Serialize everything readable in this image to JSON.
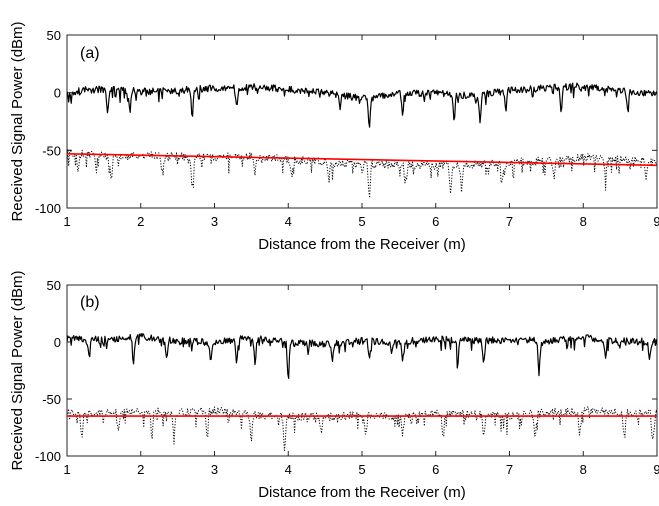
{
  "chart_data": [
    {
      "type": "line",
      "panel_label": "(a)",
      "xlabel": "Distance from the Receiver (m)",
      "ylabel": "Received Signal Power (dBm)",
      "xlim": [
        1,
        9
      ],
      "ylim": [
        -100,
        50
      ],
      "xticks": [
        1,
        2,
        3,
        4,
        5,
        6,
        7,
        8,
        9
      ],
      "yticks": [
        -100,
        -50,
        0,
        50
      ],
      "grid": false,
      "legend": "none",
      "series": [
        {
          "style": "solid",
          "color": "#000000",
          "x": [
            1.0,
            1.2,
            1.5,
            2.0,
            2.5,
            3.0,
            3.5,
            4.0,
            4.5,
            5.0,
            5.5,
            6.0,
            6.5,
            7.0,
            7.5,
            8.0,
            8.5,
            9.0
          ],
          "y": [
            0,
            2,
            3,
            1,
            2,
            4,
            5,
            3,
            0,
            -5,
            -1,
            0,
            -3,
            2,
            4,
            6,
            2,
            -1
          ],
          "dips": [
            [
              1.55,
              -20
            ],
            [
              1.85,
              -15
            ],
            [
              2.7,
              -18
            ],
            [
              3.3,
              -13
            ],
            [
              4.7,
              -14
            ],
            [
              5.1,
              -30
            ],
            [
              5.55,
              -18
            ],
            [
              6.25,
              -25
            ],
            [
              6.6,
              -24
            ],
            [
              6.95,
              -16
            ],
            [
              7.7,
              -15
            ],
            [
              8.6,
              -12
            ]
          ]
        },
        {
          "style": "dotted",
          "color": "#000000",
          "x": [
            1.0,
            1.5,
            2.0,
            2.5,
            3.0,
            3.5,
            4.0,
            4.5,
            5.0,
            5.5,
            6.0,
            6.5,
            7.0,
            7.5,
            8.0,
            8.5,
            9.0
          ],
          "y": [
            -52,
            -55,
            -54,
            -55,
            -56,
            -55,
            -58,
            -60,
            -62,
            -62,
            -63,
            -62,
            -61,
            -58,
            -56,
            -58,
            -60
          ],
          "dips": [
            [
              1.15,
              -68
            ],
            [
              1.6,
              -74
            ],
            [
              2.3,
              -72
            ],
            [
              2.7,
              -80
            ],
            [
              3.55,
              -70
            ],
            [
              4.05,
              -74
            ],
            [
              4.55,
              -76
            ],
            [
              5.1,
              -88
            ],
            [
              5.6,
              -77
            ],
            [
              6.2,
              -86
            ],
            [
              6.35,
              -84
            ],
            [
              6.9,
              -76
            ],
            [
              7.6,
              -74
            ],
            [
              8.3,
              -72
            ],
            [
              8.85,
              -75
            ]
          ]
        },
        {
          "style": "solid",
          "color": "#ff0000",
          "x": [
            1,
            9
          ],
          "y": [
            -53,
            -63
          ]
        }
      ]
    },
    {
      "type": "line",
      "panel_label": "(b)",
      "xlabel": "Distance from the Receiver (m)",
      "ylabel": "Received Signal Power (dBm)",
      "xlim": [
        1,
        9
      ],
      "ylim": [
        -100,
        50
      ],
      "xticks": [
        1,
        2,
        3,
        4,
        5,
        6,
        7,
        8,
        9
      ],
      "yticks": [
        -100,
        -50,
        0,
        50
      ],
      "grid": false,
      "legend": "none",
      "series": [
        {
          "style": "solid",
          "color": "#000000",
          "x": [
            1.0,
            1.5,
            2.0,
            2.5,
            3.0,
            3.5,
            4.0,
            4.5,
            5.0,
            5.5,
            6.0,
            6.5,
            7.0,
            7.5,
            8.0,
            8.5,
            9.0
          ],
          "y": [
            3,
            2,
            5,
            1,
            0,
            4,
            0,
            -2,
            1,
            0,
            3,
            1,
            2,
            1,
            4,
            1,
            0
          ],
          "dips": [
            [
              1.3,
              -14
            ],
            [
              1.9,
              -18
            ],
            [
              2.35,
              -13
            ],
            [
              2.95,
              -18
            ],
            [
              3.3,
              -16
            ],
            [
              3.55,
              -20
            ],
            [
              4.0,
              -32
            ],
            [
              4.6,
              -15
            ],
            [
              5.1,
              -13
            ],
            [
              5.55,
              -14
            ],
            [
              6.3,
              -16
            ],
            [
              6.65,
              -20
            ],
            [
              7.4,
              -28
            ],
            [
              8.3,
              -14
            ],
            [
              8.9,
              -13
            ]
          ]
        },
        {
          "style": "dotted",
          "color": "#000000",
          "x": [
            1.0,
            1.5,
            2.0,
            2.5,
            3.0,
            3.5,
            4.0,
            4.5,
            5.0,
            5.5,
            6.0,
            6.5,
            7.0,
            7.5,
            8.0,
            8.5,
            9.0
          ],
          "y": [
            -62,
            -63,
            -60,
            -62,
            -60,
            -64,
            -65,
            -66,
            -64,
            -66,
            -62,
            -63,
            -65,
            -62,
            -60,
            -62,
            -63
          ],
          "dips": [
            [
              1.2,
              -85
            ],
            [
              1.7,
              -80
            ],
            [
              2.15,
              -84
            ],
            [
              2.45,
              -82
            ],
            [
              2.9,
              -86
            ],
            [
              3.5,
              -84
            ],
            [
              3.95,
              -95
            ],
            [
              4.45,
              -82
            ],
            [
              5.05,
              -84
            ],
            [
              5.55,
              -82
            ],
            [
              6.1,
              -85
            ],
            [
              6.65,
              -86
            ],
            [
              7.35,
              -84
            ],
            [
              7.95,
              -80
            ],
            [
              8.55,
              -82
            ],
            [
              8.95,
              -80
            ]
          ]
        },
        {
          "style": "solid",
          "color": "#ff0000",
          "x": [
            1,
            9
          ],
          "y": [
            -65,
            -65
          ]
        }
      ]
    }
  ]
}
